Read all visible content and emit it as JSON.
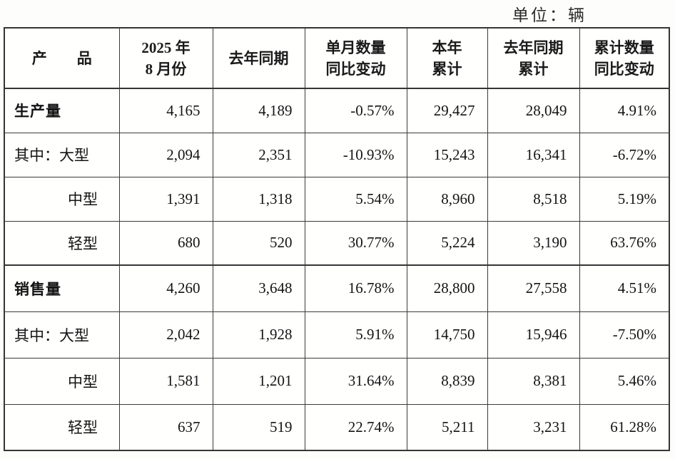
{
  "unit_label": "单位：辆",
  "table": {
    "columns": [
      {
        "line1": "产　　品",
        "line2": ""
      },
      {
        "line1": "2025 年",
        "line2": "8 月份"
      },
      {
        "line1": "去年同期",
        "line2": ""
      },
      {
        "line1": "单月数量",
        "line2": "同比变动"
      },
      {
        "line1": "本年",
        "line2": "累计"
      },
      {
        "line1": "去年同期",
        "line2": "累计"
      },
      {
        "line1": "累计数量",
        "line2": "同比变动"
      }
    ],
    "rows": [
      {
        "label": "生产量",
        "values": [
          "4,165",
          "4,189",
          "-0.57%",
          "29,427",
          "28,049",
          "4.91%"
        ]
      },
      {
        "label": "其中：大型",
        "values": [
          "2,094",
          "2,351",
          "-10.93%",
          "15,243",
          "16,341",
          "-6.72%"
        ]
      },
      {
        "label": "中型",
        "values": [
          "1,391",
          "1,318",
          "5.54%",
          "8,960",
          "8,518",
          "5.19%"
        ]
      },
      {
        "label": "轻型",
        "values": [
          "680",
          "520",
          "30.77%",
          "5,224",
          "3,190",
          "63.76%"
        ]
      },
      {
        "label": "销售量",
        "values": [
          "4,260",
          "3,648",
          "16.78%",
          "28,800",
          "27,558",
          "4.51%"
        ]
      },
      {
        "label": "其中：大型",
        "values": [
          "2,042",
          "1,928",
          "5.91%",
          "14,750",
          "15,946",
          "-7.50%"
        ]
      },
      {
        "label": "中型",
        "values": [
          "1,581",
          "1,201",
          "31.64%",
          "8,839",
          "8,381",
          "5.46%"
        ]
      },
      {
        "label": "轻型",
        "values": [
          "637",
          "519",
          "22.74%",
          "5,211",
          "3,231",
          "61.28%"
        ]
      }
    ]
  },
  "chart_data": {
    "type": "table",
    "title": "产销快报（单位：辆）",
    "columns": [
      "产品",
      "2025年8月份",
      "去年同期",
      "单月数量同比变动",
      "本年累计",
      "去年同期累计",
      "累计数量同比变动"
    ],
    "series": [
      {
        "name": "生产量",
        "month_2025_08": 4165,
        "month_last_year": 4189,
        "month_yoy": "-0.57%",
        "ytd": 29427,
        "ytd_last_year": 28049,
        "ytd_yoy": "4.91%"
      },
      {
        "name": "生产量-其中大型",
        "month_2025_08": 2094,
        "month_last_year": 2351,
        "month_yoy": "-10.93%",
        "ytd": 15243,
        "ytd_last_year": 16341,
        "ytd_yoy": "-6.72%"
      },
      {
        "name": "生产量-中型",
        "month_2025_08": 1391,
        "month_last_year": 1318,
        "month_yoy": "5.54%",
        "ytd": 8960,
        "ytd_last_year": 8518,
        "ytd_yoy": "5.19%"
      },
      {
        "name": "生产量-轻型",
        "month_2025_08": 680,
        "month_last_year": 520,
        "month_yoy": "30.77%",
        "ytd": 5224,
        "ytd_last_year": 3190,
        "ytd_yoy": "63.76%"
      },
      {
        "name": "销售量",
        "month_2025_08": 4260,
        "month_last_year": 3648,
        "month_yoy": "16.78%",
        "ytd": 28800,
        "ytd_last_year": 27558,
        "ytd_yoy": "4.51%"
      },
      {
        "name": "销售量-其中大型",
        "month_2025_08": 2042,
        "month_last_year": 1928,
        "month_yoy": "5.91%",
        "ytd": 14750,
        "ytd_last_year": 15946,
        "ytd_yoy": "-7.50%"
      },
      {
        "name": "销售量-中型",
        "month_2025_08": 1581,
        "month_last_year": 1201,
        "month_yoy": "31.64%",
        "ytd": 8839,
        "ytd_last_year": 8381,
        "ytd_yoy": "5.46%"
      },
      {
        "name": "销售量-轻型",
        "month_2025_08": 637,
        "month_last_year": 519,
        "month_yoy": "22.74%",
        "ytd": 5211,
        "ytd_last_year": 3231,
        "ytd_yoy": "61.28%"
      }
    ]
  }
}
